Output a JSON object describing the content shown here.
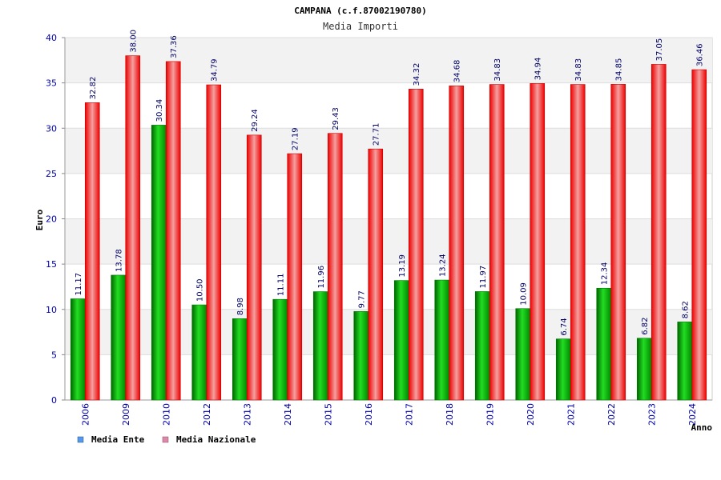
{
  "chart_data": {
    "type": "bar",
    "title": "CAMPANA (c.f.87002190780)",
    "subtitle": "Media Importi",
    "xlabel": "Anno",
    "ylabel": "Euro",
    "ylim": [
      0,
      40
    ],
    "yticks": [
      0,
      5,
      10,
      15,
      20,
      25,
      30,
      35,
      40
    ],
    "grid": true,
    "legend_position": "bottom-left",
    "categories": [
      "2006",
      "2009",
      "2010",
      "2012",
      "2013",
      "2014",
      "2015",
      "2016",
      "2017",
      "2018",
      "2019",
      "2020",
      "2021",
      "2022",
      "2023",
      "2024"
    ],
    "series": [
      {
        "name": "Media Ente",
        "color": "#00bb00",
        "legend_color": "#5599ee",
        "values": [
          11.17,
          13.78,
          30.34,
          10.5,
          8.98,
          11.11,
          11.96,
          9.77,
          13.19,
          13.24,
          11.97,
          10.09,
          6.74,
          12.34,
          6.82,
          8.62
        ],
        "labels": [
          "11.17",
          "13.78",
          "30.34",
          "10.50",
          "8.98",
          "11.11",
          "11.96",
          "9.77",
          "13.19",
          "13.24",
          "11.97",
          "10.09",
          "6.74",
          "12.34",
          "6.82",
          "8.62"
        ]
      },
      {
        "name": "Media Nazionale",
        "color": "#ee2222",
        "legend_color": "#dd88aa",
        "values": [
          32.82,
          38.0,
          37.36,
          34.79,
          29.24,
          27.19,
          29.43,
          27.71,
          34.32,
          34.68,
          34.83,
          34.94,
          34.83,
          34.85,
          37.05,
          36.46
        ],
        "labels": [
          "32.82",
          "38.00",
          "37.36",
          "34.79",
          "29.24",
          "27.19",
          "29.43",
          "27.71",
          "34.32",
          "34.68",
          "34.83",
          "34.94",
          "34.83",
          "34.85",
          "37.05",
          "36.46"
        ]
      }
    ]
  }
}
